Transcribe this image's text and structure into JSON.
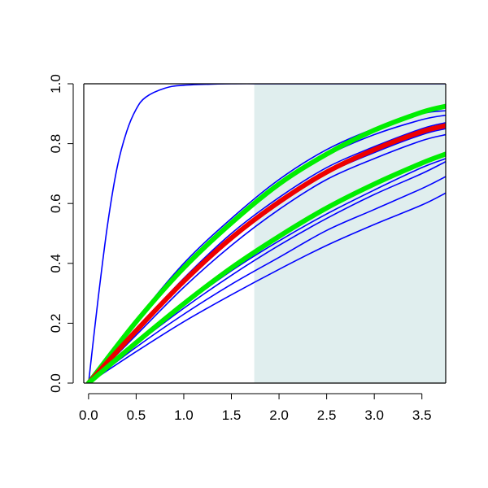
{
  "chart_data": {
    "type": "line",
    "title": "",
    "xlabel": "",
    "ylabel": "",
    "xlim": [
      -0.05,
      3.75
    ],
    "ylim": [
      0.0,
      1.0
    ],
    "x_ticks": [
      0.0,
      0.5,
      1.0,
      1.5,
      2.0,
      2.5,
      3.0,
      3.5
    ],
    "x_tick_labels": [
      "0.0",
      "0.5",
      "1.0",
      "1.5",
      "2.0",
      "2.5",
      "3.0",
      "3.5"
    ],
    "y_ticks": [
      0.0,
      0.2,
      0.4,
      0.6,
      0.8,
      1.0
    ],
    "y_tick_labels": [
      "0.0",
      "0.2",
      "0.4",
      "0.6",
      "0.8",
      "1.0"
    ],
    "grid": false,
    "legend": "none",
    "shaded_region": {
      "x_from": 1.74,
      "x_to": 3.75,
      "color": "#e0eeee"
    },
    "series": [
      {
        "color": "#0000ff",
        "width": "thin",
        "x": [
          0,
          0.1,
          0.2,
          0.3,
          0.4,
          0.5,
          0.6,
          0.8,
          1.0,
          1.5,
          2.0,
          3.0,
          3.75
        ],
        "y": [
          0,
          0.28,
          0.53,
          0.72,
          0.84,
          0.915,
          0.955,
          0.985,
          0.995,
          1.0,
          1.0,
          1.0,
          1.0
        ]
      },
      {
        "color": "#0000ff",
        "width": "thin",
        "x": [
          0,
          0.5,
          1.0,
          1.5,
          2.0,
          2.5,
          3.0,
          3.5,
          3.75
        ],
        "y": [
          0,
          0.21,
          0.4,
          0.55,
          0.68,
          0.78,
          0.85,
          0.9,
          0.91
        ]
      },
      {
        "color": "#0000ff",
        "width": "thin",
        "x": [
          0,
          0.5,
          1.0,
          1.5,
          2.0,
          2.5,
          3.0,
          3.5,
          3.75
        ],
        "y": [
          0,
          0.2,
          0.385,
          0.535,
          0.66,
          0.76,
          0.83,
          0.88,
          0.895
        ]
      },
      {
        "color": "#0000ff",
        "width": "thin",
        "x": [
          0,
          0.5,
          1.0,
          1.5,
          2.0,
          2.5,
          3.0,
          3.5,
          3.75
        ],
        "y": [
          0,
          0.18,
          0.35,
          0.5,
          0.62,
          0.72,
          0.79,
          0.85,
          0.87
        ]
      },
      {
        "color": "#0000ff",
        "width": "thin",
        "x": [
          0,
          0.5,
          1.0,
          1.5,
          2.0,
          2.5,
          3.0,
          3.5,
          3.75
        ],
        "y": [
          0,
          0.17,
          0.335,
          0.48,
          0.6,
          0.7,
          0.77,
          0.83,
          0.85
        ]
      },
      {
        "color": "#0000ff",
        "width": "thin",
        "x": [
          0,
          0.5,
          1.0,
          1.5,
          2.0,
          2.5,
          3.0,
          3.5,
          3.75
        ],
        "y": [
          0,
          0.16,
          0.32,
          0.46,
          0.58,
          0.68,
          0.75,
          0.81,
          0.83
        ]
      },
      {
        "color": "#0000ff",
        "width": "thin",
        "x": [
          0,
          0.5,
          1.0,
          1.5,
          2.0,
          2.5,
          3.0,
          3.5,
          3.75
        ],
        "y": [
          0,
          0.14,
          0.27,
          0.39,
          0.49,
          0.58,
          0.66,
          0.73,
          0.765
        ]
      },
      {
        "color": "#0000ff",
        "width": "thin",
        "x": [
          0,
          0.5,
          1.0,
          1.5,
          2.0,
          2.5,
          3.0,
          3.5,
          3.75
        ],
        "y": [
          0,
          0.135,
          0.26,
          0.375,
          0.475,
          0.565,
          0.645,
          0.72,
          0.75
        ]
      },
      {
        "color": "#0000ff",
        "width": "thin",
        "x": [
          0,
          0.5,
          1.0,
          1.5,
          2.0,
          2.5,
          3.0,
          3.5,
          3.75
        ],
        "y": [
          0,
          0.13,
          0.25,
          0.36,
          0.46,
          0.55,
          0.63,
          0.7,
          0.74
        ]
      },
      {
        "color": "#0000ff",
        "width": "thin",
        "x": [
          0,
          0.5,
          1.0,
          1.5,
          2.0,
          2.5,
          3.0,
          3.5,
          3.75
        ],
        "y": [
          0,
          0.12,
          0.23,
          0.33,
          0.42,
          0.51,
          0.58,
          0.65,
          0.69
        ]
      },
      {
        "color": "#0000ff",
        "width": "thin",
        "x": [
          0,
          0.5,
          1.0,
          1.5,
          2.0,
          2.5,
          3.0,
          3.5,
          3.75
        ],
        "y": [
          0,
          0.105,
          0.205,
          0.295,
          0.38,
          0.46,
          0.53,
          0.595,
          0.635
        ]
      },
      {
        "color": "#00ee00",
        "width": "thick",
        "x": [
          0,
          0.5,
          1.0,
          1.5,
          2.0,
          2.5,
          3.0,
          3.5,
          3.75
        ],
        "y": [
          0,
          0.205,
          0.385,
          0.535,
          0.665,
          0.765,
          0.845,
          0.905,
          0.925
        ]
      },
      {
        "color": "#ee0000",
        "width": "thick",
        "x": [
          0,
          0.5,
          1.0,
          1.5,
          2.0,
          2.5,
          3.0,
          3.5,
          3.75
        ],
        "y": [
          0,
          0.175,
          0.34,
          0.485,
          0.605,
          0.705,
          0.78,
          0.84,
          0.86
        ]
      },
      {
        "color": "#00ee00",
        "width": "thick",
        "x": [
          0,
          0.5,
          1.0,
          1.5,
          2.0,
          2.5,
          3.0,
          3.5,
          3.75
        ],
        "y": [
          0,
          0.135,
          0.265,
          0.385,
          0.49,
          0.585,
          0.665,
          0.735,
          0.765
        ]
      }
    ]
  }
}
